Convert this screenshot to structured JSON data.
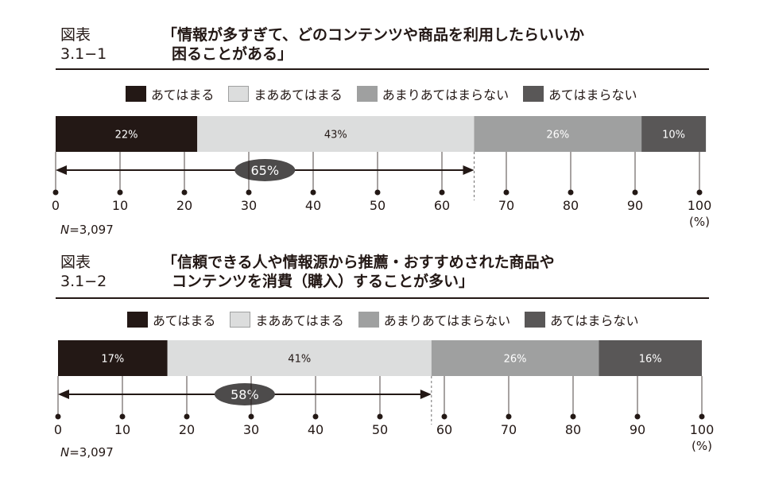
{
  "colors": {
    "applies": "#231815",
    "somewhat_applies": "#dcdddd",
    "not_really": "#9fa0a0",
    "not_at_all": "#595757",
    "ellipse": "#4d4b4b"
  },
  "legend": {
    "applies": "あてはまる",
    "somewhat_applies": "まああてはまる",
    "not_really": "あまりあてはまらない",
    "not_at_all": "あてはまらない"
  },
  "chart_data": [
    {
      "type": "bar",
      "figure_number": "図表3.1−1",
      "title_lines": [
        "「情報が多すぎて、どのコンテンツや商品を利用したらいいか",
        "困ることがある」"
      ],
      "series": [
        {
          "name": "あてはまる",
          "value": 22,
          "label": "22%"
        },
        {
          "name": "まああてはまる",
          "value": 43,
          "label": "43%"
        },
        {
          "name": "あまりあてはまらない",
          "value": 26,
          "label": "26%"
        },
        {
          "name": "あてはまらない",
          "value": 10,
          "label": "10%"
        }
      ],
      "bracket": {
        "from": 0,
        "to": 65,
        "label": "65%"
      },
      "x_ticks": [
        "0",
        "10",
        "20",
        "30",
        "40",
        "50",
        "60",
        "70",
        "80",
        "90",
        "100"
      ],
      "xlim": [
        0,
        100
      ],
      "unit": "(%)",
      "n_label": "N",
      "n_value": "=3,097"
    },
    {
      "type": "bar",
      "figure_number": "図表3.1−2",
      "title_lines": [
        "「信頼できる人や情報源から推薦・おすすめされた商品や",
        "コンテンツを消費（購入）することが多い」"
      ],
      "series": [
        {
          "name": "あてはまる",
          "value": 17,
          "label": "17%"
        },
        {
          "name": "まああてはまる",
          "value": 41,
          "label": "41%"
        },
        {
          "name": "あまりあてはまらない",
          "value": 26,
          "label": "26%"
        },
        {
          "name": "あてはまらない",
          "value": 16,
          "label": "16%"
        }
      ],
      "bracket": {
        "from": 0,
        "to": 58,
        "label": "58%"
      },
      "x_ticks": [
        "0",
        "10",
        "20",
        "30",
        "40",
        "50",
        "60",
        "70",
        "80",
        "90",
        "100"
      ],
      "xlim": [
        0,
        100
      ],
      "unit": "(%)",
      "n_label": "N",
      "n_value": "=3,097"
    }
  ]
}
